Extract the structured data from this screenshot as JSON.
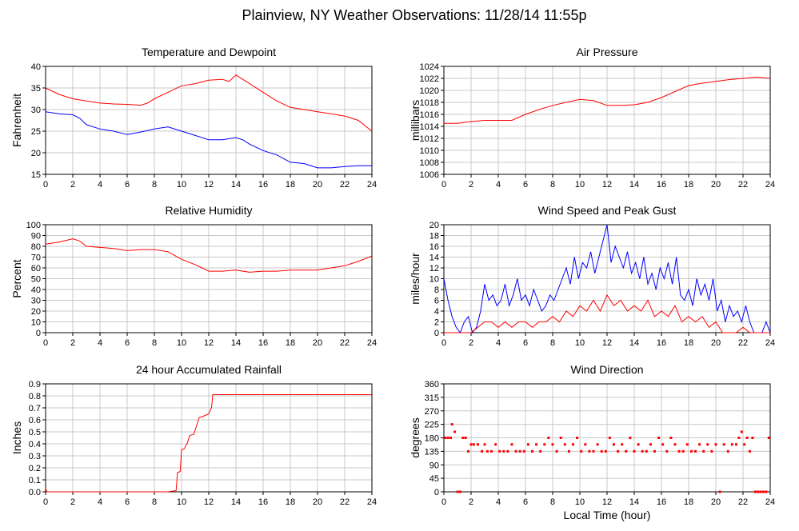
{
  "page_title": "Plainview, NY Weather Observations: 11/28/14 11:55p",
  "chart_data": [
    {
      "type": "line",
      "title": "Temperature and Dewpoint",
      "xlabel": "",
      "ylabel": "Fahrenheit",
      "xlim": [
        0,
        24
      ],
      "ylim": [
        15,
        40
      ],
      "xticks": [
        0,
        2,
        4,
        6,
        8,
        10,
        12,
        14,
        16,
        18,
        20,
        22,
        24
      ],
      "yticks": [
        15,
        20,
        25,
        30,
        35,
        40
      ],
      "grid": true,
      "series": [
        {
          "color": "#ff0000",
          "x": [
            0,
            1,
            2,
            3,
            4,
            5,
            6,
            7,
            7.5,
            8,
            9,
            10,
            11,
            12,
            13,
            13.5,
            14,
            14.5,
            15,
            16,
            17,
            18,
            19,
            20,
            21,
            22,
            23,
            24
          ],
          "y": [
            35,
            33.5,
            32.5,
            32,
            31.5,
            31.3,
            31.2,
            31,
            31.5,
            32.5,
            34,
            35.5,
            36,
            36.8,
            37,
            36.5,
            38,
            37,
            36,
            34,
            32,
            30.5,
            30,
            29.5,
            29,
            28.5,
            27.5,
            25
          ]
        },
        {
          "color": "#0000ff",
          "x": [
            0,
            1,
            2,
            2.5,
            3,
            4,
            5,
            6,
            7,
            8,
            9,
            10,
            11,
            12,
            13,
            14,
            14.5,
            15,
            16,
            17,
            18,
            19,
            20,
            21,
            22,
            23,
            24
          ],
          "y": [
            29.5,
            29,
            28.8,
            28,
            26.5,
            25.5,
            25,
            24.2,
            24.8,
            25.5,
            26,
            25,
            24,
            23,
            23,
            23.5,
            23,
            22,
            20.5,
            19.5,
            17.8,
            17.5,
            16.5,
            16.5,
            16.8,
            17,
            17
          ]
        }
      ]
    },
    {
      "type": "line",
      "title": "Air Pressure",
      "xlabel": "",
      "ylabel": "millibars",
      "xlim": [
        0,
        24
      ],
      "ylim": [
        1006,
        1024
      ],
      "xticks": [
        0,
        2,
        4,
        6,
        8,
        10,
        12,
        14,
        16,
        18,
        20,
        22,
        24
      ],
      "yticks": [
        1006,
        1008,
        1010,
        1012,
        1014,
        1016,
        1018,
        1020,
        1022,
        1024
      ],
      "grid": true,
      "series": [
        {
          "color": "#ff0000",
          "x": [
            0,
            1,
            2,
            3,
            4,
            5,
            6,
            7,
            8,
            9,
            10,
            11,
            12,
            13,
            14,
            15,
            16,
            17,
            18,
            19,
            20,
            21,
            22,
            23,
            24
          ],
          "y": [
            1014.5,
            1014.5,
            1014.8,
            1015,
            1015,
            1015,
            1016,
            1016.8,
            1017.5,
            1018,
            1018.5,
            1018.3,
            1017.5,
            1017.5,
            1017.6,
            1018,
            1018.8,
            1019.8,
            1020.8,
            1021.2,
            1021.5,
            1021.8,
            1022,
            1022.2,
            1022
          ]
        }
      ]
    },
    {
      "type": "line",
      "title": "Relative Humidity",
      "xlabel": "",
      "ylabel": "Percent",
      "xlim": [
        0,
        24
      ],
      "ylim": [
        0,
        100
      ],
      "xticks": [
        0,
        2,
        4,
        6,
        8,
        10,
        12,
        14,
        16,
        18,
        20,
        22,
        24
      ],
      "yticks": [
        0,
        10,
        20,
        30,
        40,
        50,
        60,
        70,
        80,
        90,
        100
      ],
      "grid": true,
      "series": [
        {
          "color": "#ff0000",
          "x": [
            0,
            1,
            2,
            2.5,
            3,
            4,
            5,
            6,
            7,
            8,
            9,
            10,
            11,
            12,
            13,
            14,
            15,
            16,
            17,
            18,
            19,
            20,
            21,
            22,
            23,
            24
          ],
          "y": [
            82,
            84,
            87,
            85,
            80,
            79,
            78,
            76,
            77,
            77,
            75,
            68,
            63,
            57,
            57,
            58,
            56,
            57,
            57,
            58,
            58,
            58,
            60,
            62,
            66,
            71
          ]
        }
      ]
    },
    {
      "type": "line",
      "title": "Wind Speed and Peak Gust",
      "xlabel": "",
      "ylabel": "miles/hour",
      "xlim": [
        0,
        24
      ],
      "ylim": [
        0,
        20
      ],
      "xticks": [
        0,
        2,
        4,
        6,
        8,
        10,
        12,
        14,
        16,
        18,
        20,
        22,
        24
      ],
      "yticks": [
        0,
        2,
        4,
        6,
        8,
        10,
        12,
        14,
        16,
        18,
        20
      ],
      "grid": true,
      "series": [
        {
          "color": "#0000ff",
          "x": [
            0,
            0.3,
            0.6,
            0.9,
            1.2,
            1.5,
            1.8,
            2.1,
            2.4,
            2.7,
            3,
            3.3,
            3.6,
            3.9,
            4.2,
            4.5,
            4.8,
            5.1,
            5.4,
            5.7,
            6,
            6.3,
            6.6,
            6.9,
            7.2,
            7.5,
            7.8,
            8.1,
            8.4,
            8.7,
            9,
            9.3,
            9.6,
            9.9,
            10.2,
            10.5,
            10.8,
            11.1,
            11.4,
            11.7,
            12,
            12.3,
            12.6,
            12.9,
            13.2,
            13.5,
            13.8,
            14.1,
            14.4,
            14.7,
            15,
            15.3,
            15.6,
            15.9,
            16.2,
            16.5,
            16.8,
            17.1,
            17.4,
            17.7,
            18,
            18.3,
            18.6,
            18.9,
            19.2,
            19.5,
            19.8,
            20.1,
            20.4,
            20.7,
            21,
            21.3,
            21.6,
            21.9,
            22.2,
            22.5,
            22.8,
            23.1,
            23.4,
            23.7,
            24
          ],
          "y": [
            10,
            6,
            3,
            1,
            0,
            2,
            3,
            0,
            1,
            4,
            9,
            6,
            7,
            5,
            6,
            9,
            5,
            7,
            10,
            6,
            7,
            5,
            8,
            6,
            4,
            5,
            7,
            6,
            8,
            10,
            12,
            9,
            14,
            10,
            13,
            12,
            15,
            11,
            14,
            17,
            20,
            13,
            16,
            14,
            12,
            15,
            11,
            13,
            10,
            14,
            9,
            11,
            8,
            12,
            10,
            13,
            9,
            14,
            7,
            6,
            8,
            5,
            10,
            7,
            9,
            6,
            10,
            4,
            6,
            2,
            5,
            3,
            4,
            2,
            5,
            2,
            0,
            0,
            0,
            2,
            0
          ]
        },
        {
          "color": "#ff0000",
          "x": [
            0,
            0.5,
            1,
            1.5,
            2,
            2.5,
            3,
            3.5,
            4,
            4.5,
            5,
            5.5,
            6,
            6.5,
            7,
            7.5,
            8,
            8.5,
            9,
            9.5,
            10,
            10.5,
            11,
            11.5,
            12,
            12.5,
            13,
            13.5,
            14,
            14.5,
            15,
            15.5,
            16,
            16.5,
            17,
            17.5,
            18,
            18.5,
            19,
            19.5,
            20,
            20.5,
            21,
            21.5,
            22,
            22.5,
            23,
            23.5,
            24
          ],
          "y": [
            0,
            0,
            0,
            0,
            0,
            1,
            2,
            2,
            1,
            2,
            1,
            2,
            2,
            1,
            2,
            2,
            3,
            2,
            4,
            3,
            5,
            4,
            6,
            4,
            7,
            5,
            6,
            4,
            5,
            4,
            6,
            3,
            4,
            3,
            5,
            2,
            3,
            2,
            3,
            1,
            2,
            0,
            0,
            0,
            1,
            0,
            0,
            0,
            0
          ]
        }
      ]
    },
    {
      "type": "line",
      "title": "24 hour Accumulated Rainfall",
      "xlabel": "",
      "ylabel": "Inches",
      "xlim": [
        0,
        24
      ],
      "ylim": [
        0,
        0.9
      ],
      "xticks": [
        0,
        2,
        4,
        6,
        8,
        10,
        12,
        14,
        16,
        18,
        20,
        22,
        24
      ],
      "yticks": [
        0.0,
        0.1,
        0.2,
        0.3,
        0.4,
        0.5,
        0.6,
        0.7,
        0.8,
        0.9
      ],
      "ytick_labels": [
        "0.0",
        "0.1",
        "0.2",
        "0.3",
        "0.4",
        "0.5",
        "0.6",
        "0.7",
        "0.8",
        "0.9"
      ],
      "grid": true,
      "series": [
        {
          "color": "#ff0000",
          "x": [
            0,
            0.1,
            9,
            9.6,
            9.7,
            9.9,
            10,
            10.2,
            10.4,
            10.6,
            10.9,
            11.1,
            11.3,
            11.6,
            11.8,
            12,
            12.2,
            12.3,
            24
          ],
          "y": [
            0.03,
            0,
            0,
            0.01,
            0.16,
            0.17,
            0.35,
            0.36,
            0.4,
            0.47,
            0.48,
            0.55,
            0.62,
            0.63,
            0.64,
            0.65,
            0.7,
            0.81,
            0.81
          ]
        }
      ]
    },
    {
      "type": "scatter",
      "title": "Wind Direction",
      "xlabel": "Local Time (hour)",
      "ylabel": "degrees",
      "xlim": [
        0,
        24
      ],
      "ylim": [
        0,
        360
      ],
      "xticks": [
        0,
        2,
        4,
        6,
        8,
        10,
        12,
        14,
        16,
        18,
        20,
        22,
        24
      ],
      "yticks": [
        0,
        45,
        90,
        135,
        180,
        225,
        270,
        315,
        360
      ],
      "grid": true,
      "series": [
        {
          "color": "#ff0000",
          "x": [
            0.1,
            0.3,
            0.5,
            0.6,
            0.8,
            1,
            1.2,
            1.4,
            1.6,
            1.8,
            2,
            2.2,
            2.5,
            2.8,
            3,
            3.2,
            3.5,
            3.8,
            4.1,
            4.4,
            4.7,
            5,
            5.3,
            5.6,
            5.9,
            6.2,
            6.5,
            6.8,
            7.1,
            7.4,
            7.7,
            8,
            8.3,
            8.6,
            8.9,
            9.2,
            9.5,
            9.8,
            10.1,
            10.4,
            10.7,
            11,
            11.3,
            11.6,
            11.9,
            12.2,
            12.5,
            12.8,
            13.1,
            13.4,
            13.7,
            14,
            14.3,
            14.6,
            14.9,
            15.2,
            15.5,
            15.8,
            16.1,
            16.4,
            16.7,
            17,
            17.3,
            17.6,
            17.9,
            18.2,
            18.5,
            18.8,
            19.1,
            19.4,
            19.7,
            20,
            20.3,
            20.6,
            20.9,
            21.2,
            21.5,
            21.7,
            21.9,
            22.1,
            22.3,
            22.5,
            22.7,
            22.9,
            23.1,
            23.3,
            23.5,
            23.7,
            23.9
          ],
          "y": [
            180,
            180,
            180,
            225,
            200,
            0,
            0,
            180,
            180,
            135,
            158,
            158,
            158,
            135,
            158,
            135,
            135,
            158,
            135,
            135,
            135,
            158,
            135,
            135,
            135,
            158,
            135,
            158,
            135,
            158,
            180,
            158,
            135,
            180,
            158,
            135,
            158,
            180,
            135,
            158,
            135,
            135,
            158,
            135,
            135,
            180,
            158,
            135,
            158,
            135,
            180,
            135,
            158,
            135,
            135,
            158,
            135,
            180,
            158,
            135,
            180,
            158,
            135,
            135,
            158,
            135,
            135,
            158,
            135,
            158,
            135,
            158,
            0,
            158,
            135,
            158,
            158,
            180,
            200,
            158,
            180,
            135,
            180,
            0,
            0,
            0,
            0,
            0,
            180
          ]
        }
      ]
    }
  ]
}
